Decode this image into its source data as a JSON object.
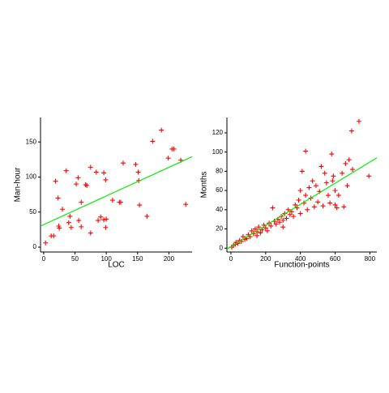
{
  "chart_data": [
    {
      "type": "scatter",
      "x_label": "LOC",
      "y_label": "Man-hour",
      "color": "#ff0000",
      "x": [
        3,
        12,
        16,
        19,
        23,
        25,
        24,
        30,
        36,
        40,
        42,
        44,
        52,
        55,
        56,
        60,
        60,
        67,
        69,
        75,
        75,
        84,
        87,
        91,
        96,
        99,
        96,
        100,
        99,
        110,
        121,
        123,
        127,
        147,
        151,
        152,
        153,
        165,
        174,
        188,
        199,
        205,
        208,
        219,
        227
      ],
      "values": [
        6,
        16,
        16,
        94,
        70,
        27,
        30,
        54,
        109,
        35,
        44,
        28,
        90,
        99,
        38,
        29,
        64,
        89,
        88,
        114,
        20,
        107,
        38,
        43,
        106,
        96,
        39,
        40,
        28,
        67,
        64,
        64,
        120,
        118,
        107,
        95,
        60,
        44,
        151,
        167,
        127,
        140,
        140,
        124,
        61
      ],
      "fit": {
        "color": "#00ee00",
        "x": [
          -5,
          237
        ],
        "values": [
          30,
          129
        ]
      },
      "xlim": [
        -5,
        237
      ],
      "ylim": [
        -7,
        185
      ],
      "xticks": [
        0,
        50,
        100,
        150,
        200
      ],
      "yticks": [
        0,
        50,
        100,
        150
      ]
    },
    {
      "type": "scatter",
      "x_label": "Function-points",
      "y_label": "Months",
      "color": "#ff0000",
      "x": [
        5,
        15,
        25,
        30,
        40,
        50,
        60,
        70,
        80,
        90,
        100,
        110,
        120,
        130,
        140,
        150,
        150,
        160,
        170,
        180,
        190,
        200,
        210,
        220,
        230,
        240,
        250,
        260,
        270,
        280,
        290,
        300,
        300,
        310,
        320,
        330,
        340,
        350,
        360,
        370,
        380,
        390,
        400,
        400,
        410,
        420,
        430,
        430,
        440,
        450,
        460,
        470,
        480,
        490,
        500,
        510,
        520,
        530,
        540,
        550,
        560,
        570,
        580,
        585,
        590,
        600,
        600,
        610,
        620,
        640,
        650,
        660,
        670,
        680,
        695,
        700,
        737,
        794
      ],
      "values": [
        1,
        3,
        4,
        6,
        5,
        8,
        7,
        12,
        9,
        10,
        14,
        12,
        18,
        15,
        20,
        13,
        17,
        22,
        16,
        19,
        24,
        21,
        18,
        26,
        23,
        42,
        28,
        25,
        30,
        27,
        33,
        29,
        22,
        36,
        31,
        40,
        35,
        38,
        33,
        45,
        42,
        50,
        36,
        60,
        80,
        47,
        55,
        101,
        40,
        63,
        52,
        70,
        43,
        65,
        48,
        59,
        85,
        44,
        78,
        68,
        55,
        47,
        98,
        70,
        75,
        45,
        60,
        42,
        55,
        78,
        43,
        88,
        65,
        92,
        122,
        82,
        132,
        75
      ],
      "fit": {
        "color": "#00ee00",
        "x": [
          -23,
          840
        ],
        "values": [
          -1,
          94
        ]
      },
      "xlim": [
        -23,
        840
      ],
      "ylim": [
        -4,
        136
      ],
      "xticks": [
        0,
        200,
        400,
        600,
        800
      ],
      "yticks": [
        0,
        20,
        40,
        60,
        80,
        100,
        120
      ]
    }
  ]
}
